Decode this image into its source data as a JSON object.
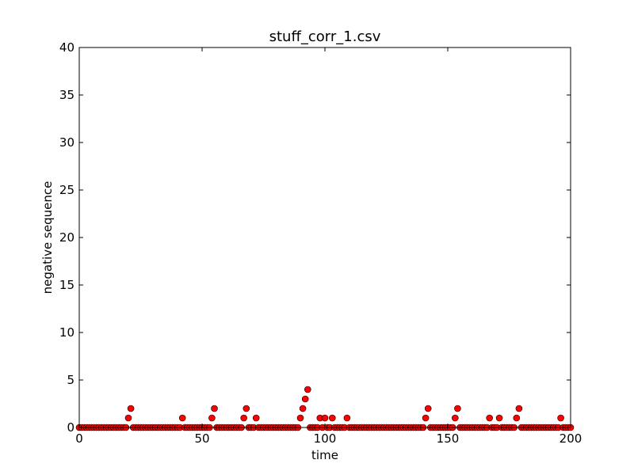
{
  "chart_data": {
    "type": "scatter",
    "title": "stuff_corr_1.csv",
    "xlabel": "time",
    "ylabel": "negative sequence",
    "xlim": [
      0,
      200
    ],
    "ylim": [
      0,
      40
    ],
    "xticks": [
      0,
      50,
      100,
      150,
      200
    ],
    "yticks": [
      0,
      5,
      10,
      15,
      20,
      25,
      30,
      35,
      40
    ],
    "grid": false,
    "marker_color": "#ff0000",
    "marker_edge": "#000000",
    "series": [
      {
        "values": [
          0,
          0,
          0,
          0,
          0,
          0,
          0,
          0,
          0,
          0,
          0,
          0,
          0,
          0,
          0,
          0,
          0,
          0,
          0,
          0,
          1,
          2,
          0,
          0,
          0,
          0,
          0,
          0,
          0,
          0,
          0,
          0,
          0,
          0,
          0,
          0,
          0,
          0,
          0,
          0,
          0,
          0,
          1,
          0,
          0,
          0,
          0,
          0,
          0,
          0,
          0,
          0,
          0,
          0,
          1,
          2,
          0,
          0,
          0,
          0,
          0,
          0,
          0,
          0,
          0,
          0,
          0,
          1,
          2,
          0,
          0,
          0,
          1,
          0,
          0,
          0,
          0,
          0,
          0,
          0,
          0,
          0,
          0,
          0,
          0,
          0,
          0,
          0,
          0,
          0,
          1,
          2,
          3,
          4,
          0,
          0,
          0,
          0,
          1,
          0,
          1,
          0,
          0,
          1,
          0,
          0,
          0,
          0,
          0,
          1,
          0,
          0,
          0,
          0,
          0,
          0,
          0,
          0,
          0,
          0,
          0,
          0,
          0,
          0,
          0,
          0,
          0,
          0,
          0,
          0,
          0,
          0,
          0,
          0,
          0,
          0,
          0,
          0,
          0,
          0,
          0,
          1,
          2,
          0,
          0,
          0,
          0,
          0,
          0,
          0,
          0,
          0,
          0,
          1,
          2,
          0,
          0,
          0,
          0,
          0,
          0,
          0,
          0,
          0,
          0,
          0,
          0,
          1,
          0,
          0,
          0,
          1,
          0,
          0,
          0,
          0,
          0,
          0,
          1,
          2,
          0,
          0,
          0,
          0,
          0,
          0,
          0,
          0,
          0,
          0,
          0,
          0,
          0,
          0,
          0,
          0,
          1,
          0,
          0,
          0,
          0
        ]
      }
    ]
  }
}
